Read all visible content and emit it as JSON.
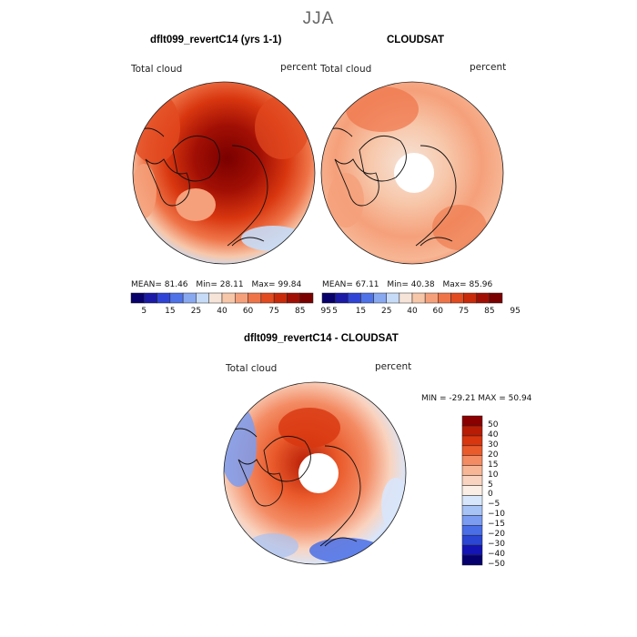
{
  "figure": {
    "title": "JJA"
  },
  "panels": [
    {
      "title": "dflt099_revertC14 (yrs 1-1)",
      "left_label": "Total cloud",
      "right_label": "percent",
      "stats": {
        "mean_label": "MEAN=",
        "mean": "81.46",
        "min_label": "Min=",
        "min": "28.11",
        "max_label": "Max=",
        "max": "99.84"
      }
    },
    {
      "title": "CLOUDSAT",
      "left_label": "Total cloud",
      "right_label": "percent",
      "stats": {
        "mean_label": "MEAN=",
        "mean": "67.11",
        "min_label": "Min=",
        "min": "40.38",
        "max_label": "Max=",
        "max": "85.96"
      }
    },
    {
      "title": "dflt099_revertC14 - CLOUDSAT",
      "left_label": "Total cloud",
      "right_label": "percent",
      "range_text": "MIN = -29.21 MAX =  50.94"
    }
  ],
  "colorbar_abs": {
    "colors": [
      "#08006b",
      "#1a1aa6",
      "#2f44d6",
      "#4f72e8",
      "#88a8f0",
      "#c6dbf7",
      "#f6e4d9",
      "#f7c7aa",
      "#f5a07a",
      "#ef7448",
      "#e24a20",
      "#c92a0a",
      "#a10f04",
      "#7a0000"
    ],
    "tick_labels": [
      "5",
      "15",
      "25",
      "40",
      "60",
      "75",
      "85",
      "95"
    ]
  },
  "colorbar_diff": {
    "colors": [
      "#06006e",
      "#1414b4",
      "#2a46d2",
      "#4a6ee6",
      "#7b9cf0",
      "#a7c2f5",
      "#d8e6fb",
      "#fbeee5",
      "#f9d3bf",
      "#f7b695",
      "#f38b63",
      "#ea5b2c",
      "#d8360f",
      "#b81c05",
      "#8a0000"
    ],
    "tick_labels": [
      "50",
      "40",
      "30",
      "20",
      "15",
      "10",
      "5",
      "0",
      "−5",
      "−10",
      "−15",
      "−20",
      "−30",
      "−40",
      "−50"
    ]
  }
}
